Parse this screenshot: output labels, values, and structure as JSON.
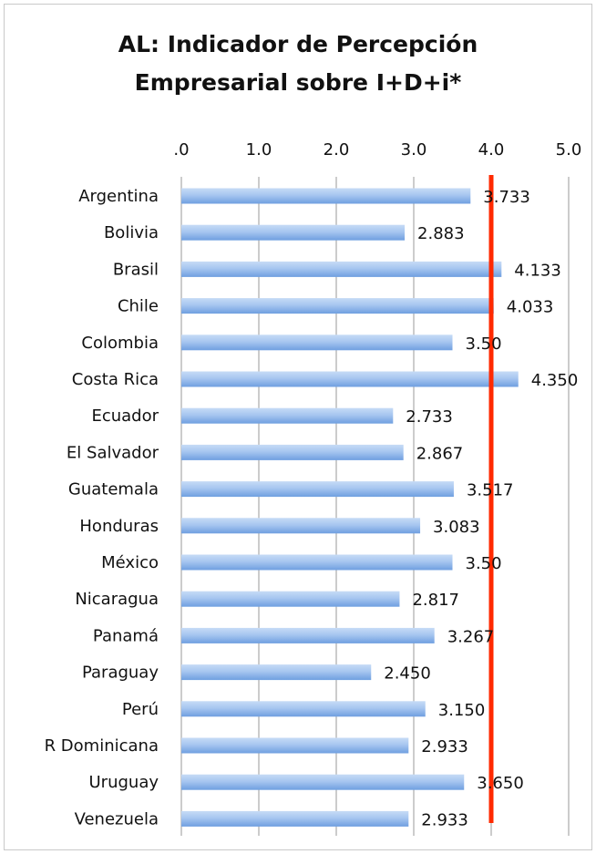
{
  "chart_data": {
    "type": "bar",
    "orientation": "horizontal",
    "title_lines": [
      "AL: Indicador de Percepción",
      "Empresarial sobre I+D+i*"
    ],
    "categories": [
      "Argentina",
      "Bolivia",
      "Brasil",
      "Chile",
      "Colombia",
      "Costa Rica",
      "Ecuador",
      "El Salvador",
      "Guatemala",
      "Honduras",
      "México",
      "Nicaragua",
      "Panamá",
      "Paraguay",
      "Perú",
      "R Dominicana",
      "Uruguay",
      "Venezuela"
    ],
    "values": [
      3.733,
      2.883,
      4.133,
      4.033,
      3.5,
      4.35,
      2.733,
      2.867,
      3.517,
      3.083,
      3.5,
      2.817,
      3.267,
      2.45,
      3.15,
      2.933,
      3.65,
      2.933
    ],
    "value_labels": [
      "3.733",
      "2.883",
      "4.133",
      "4.033",
      "3.50",
      "4.350",
      "2.733",
      "2.867",
      "3.517",
      "3.083",
      "3.50",
      "2.817",
      "3.267",
      "2.450",
      "3.150",
      "2.933",
      "3.650",
      "2.933"
    ],
    "xlim": [
      0,
      5
    ],
    "x_ticks": [
      0,
      1,
      2,
      3,
      4,
      5
    ],
    "x_tick_labels": [
      ".0",
      "1.0",
      "2.0",
      "3.0",
      "4.0",
      "5.0"
    ],
    "x_axis_position": "top",
    "reference_line": 4.0,
    "grid": true,
    "legend": "none",
    "colors": {
      "bar_top": "#c6dbf6",
      "bar_bottom": "#6f9fe0",
      "reference_line": "#ff2a00",
      "grid": "#9a9a9a"
    }
  }
}
